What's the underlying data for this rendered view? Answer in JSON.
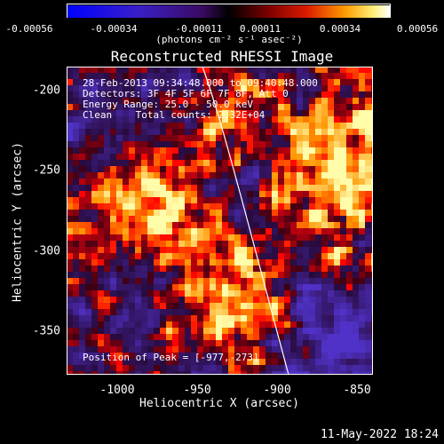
{
  "colorbar": {
    "ticks": [
      "-0.00056",
      "-0.00034",
      "-0.00011",
      "0.00011",
      "0.00034",
      "0.00056"
    ],
    "unit_label": "(photons cm⁻² s⁻¹ asec⁻²)"
  },
  "title": "Reconstructed RHESSI Image",
  "annotations": {
    "time_range": "28-Feb-2013 09:34:48.000 to 09:40:48.000",
    "detectors": "Detectors: 3F 4F 5F 6F 7F 8F, Att 0",
    "energy_range": "Energy Range: 25.0 - 50.0 keV",
    "method_counts": "Clean    Total counts: 2.32E+04",
    "peak_position": "Position of Peak = [-977,-273]"
  },
  "axes": {
    "xlabel": "Heliocentric X (arcsec)",
    "ylabel": "Heliocentric Y (arcsec)",
    "xticks": [
      "-1000",
      "-950",
      "-900",
      "-850"
    ],
    "yticks": [
      "-200",
      "-250",
      "-300",
      "-350"
    ]
  },
  "timestamp": "11-May-2022 18:24",
  "colors": {
    "background": "#000000",
    "text": "#ffffff",
    "colorbar_low": "#0000ff",
    "colorbar_mid": "#000000",
    "colorbar_high": "#ffffff"
  }
}
